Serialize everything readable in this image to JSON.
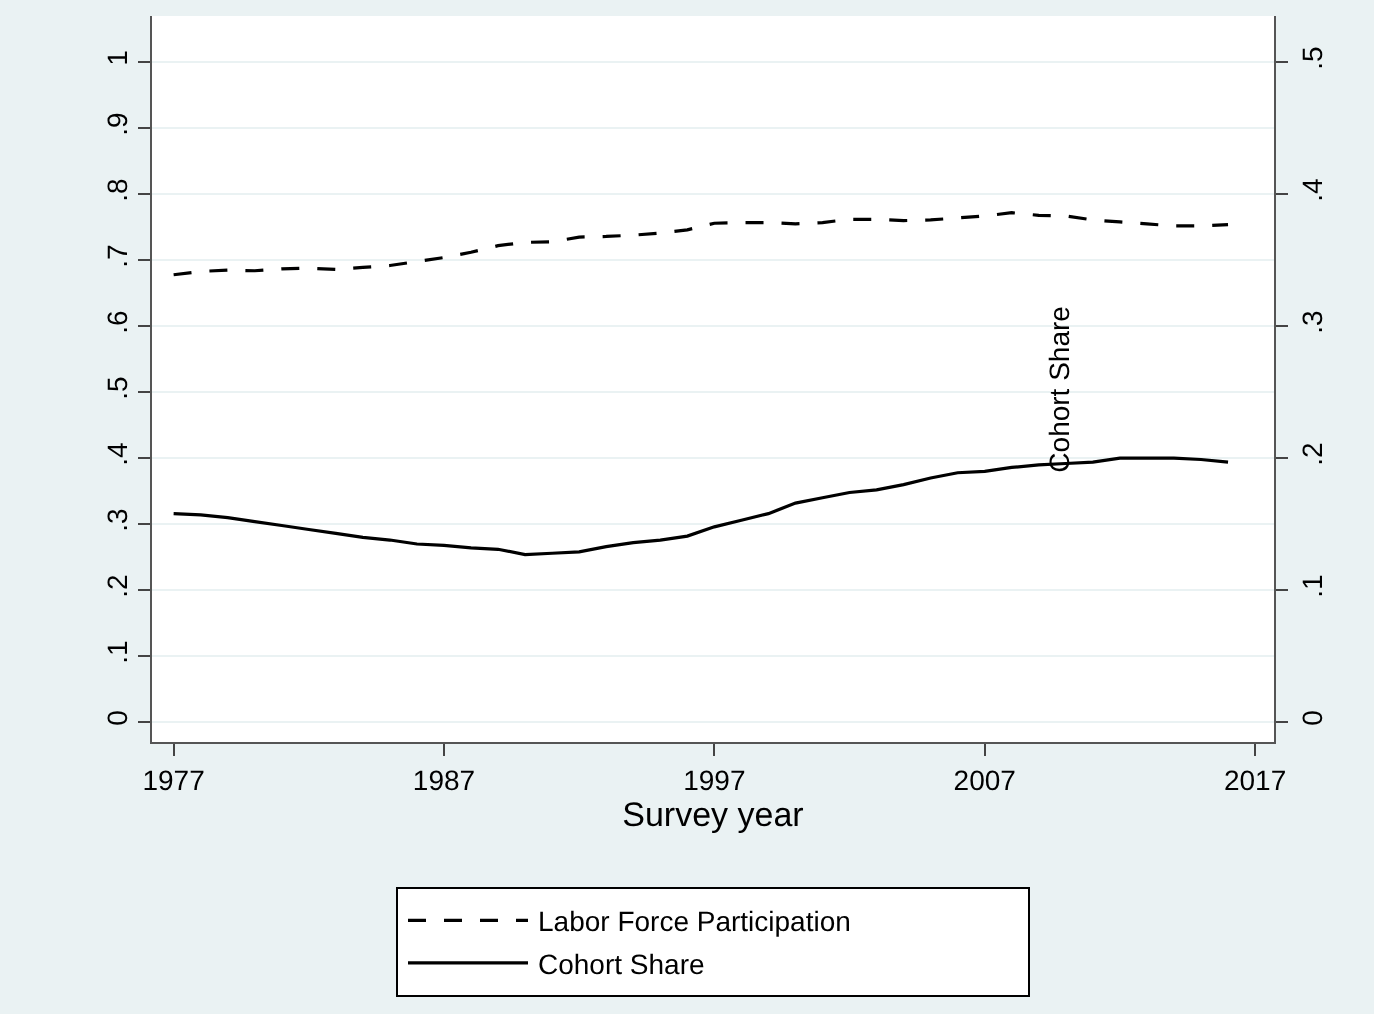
{
  "chart_data": {
    "type": "line",
    "xlabel": "Survey year",
    "annotations": [
      "Cohort Share"
    ],
    "x": [
      1977,
      1978,
      1979,
      1980,
      1981,
      1982,
      1983,
      1984,
      1985,
      1986,
      1987,
      1988,
      1989,
      1990,
      1991,
      1992,
      1993,
      1994,
      1995,
      1996,
      1997,
      1998,
      1999,
      2000,
      2001,
      2002,
      2003,
      2004,
      2005,
      2006,
      2007,
      2008,
      2009,
      2010,
      2011,
      2012,
      2013,
      2014,
      2015,
      2016
    ],
    "series": [
      {
        "name": "Labor Force Participation",
        "color": "#000000",
        "line_style": "dashed",
        "values": [
          0.678,
          0.683,
          0.685,
          0.684,
          0.687,
          0.688,
          0.686,
          0.689,
          0.692,
          0.698,
          0.704,
          0.712,
          0.722,
          0.727,
          0.728,
          0.735,
          0.736,
          0.738,
          0.741,
          0.746,
          0.756,
          0.757,
          0.757,
          0.755,
          0.757,
          0.762,
          0.762,
          0.76,
          0.761,
          0.764,
          0.767,
          0.772,
          0.768,
          0.767,
          0.761,
          0.758,
          0.755,
          0.752,
          0.752,
          0.754
        ]
      },
      {
        "name": "Cohort Share",
        "color": "#000000",
        "line_style": "solid",
        "axis": "y2",
        "values": [
          0.158,
          0.157,
          0.155,
          0.152,
          0.149,
          0.146,
          0.143,
          0.14,
          0.138,
          0.135,
          0.134,
          0.132,
          0.131,
          0.127,
          0.128,
          0.129,
          0.133,
          0.136,
          0.138,
          0.141,
          0.148,
          0.153,
          0.158,
          0.166,
          0.17,
          0.174,
          0.176,
          0.18,
          0.185,
          0.189,
          0.19,
          0.193,
          0.195,
          0.196,
          0.197,
          0.2,
          0.2,
          0.2,
          0.199,
          0.197
        ]
      }
    ],
    "xlim": [
      1976.2,
      2017.7
    ],
    "xticks": [
      1977,
      1987,
      1997,
      2007,
      2017
    ],
    "ylim": [
      -0.03,
      1.07
    ],
    "yticks": [
      {
        "value": 0,
        "label": "0"
      },
      {
        "value": 0.1,
        "label": ".1"
      },
      {
        "value": 0.2,
        "label": ".2"
      },
      {
        "value": 0.3,
        "label": ".3"
      },
      {
        "value": 0.4,
        "label": ".4"
      },
      {
        "value": 0.5,
        "label": ".5"
      },
      {
        "value": 0.6,
        "label": ".6"
      },
      {
        "value": 0.7,
        "label": ".7"
      },
      {
        "value": 0.8,
        "label": ".8"
      },
      {
        "value": 0.9,
        "label": ".9"
      },
      {
        "value": 1,
        "label": "1"
      }
    ],
    "y2lim": [
      -0.015,
      0.535
    ],
    "y2ticks": [
      {
        "value": 0,
        "label": "0"
      },
      {
        "value": 0.1,
        "label": ".1"
      },
      {
        "value": 0.2,
        "label": ".2"
      },
      {
        "value": 0.3,
        "label": ".3"
      },
      {
        "value": 0.4,
        "label": ".4"
      },
      {
        "value": 0.5,
        "label": ".5"
      }
    ],
    "grid": "y",
    "legend": "bottom",
    "marker": "none"
  }
}
